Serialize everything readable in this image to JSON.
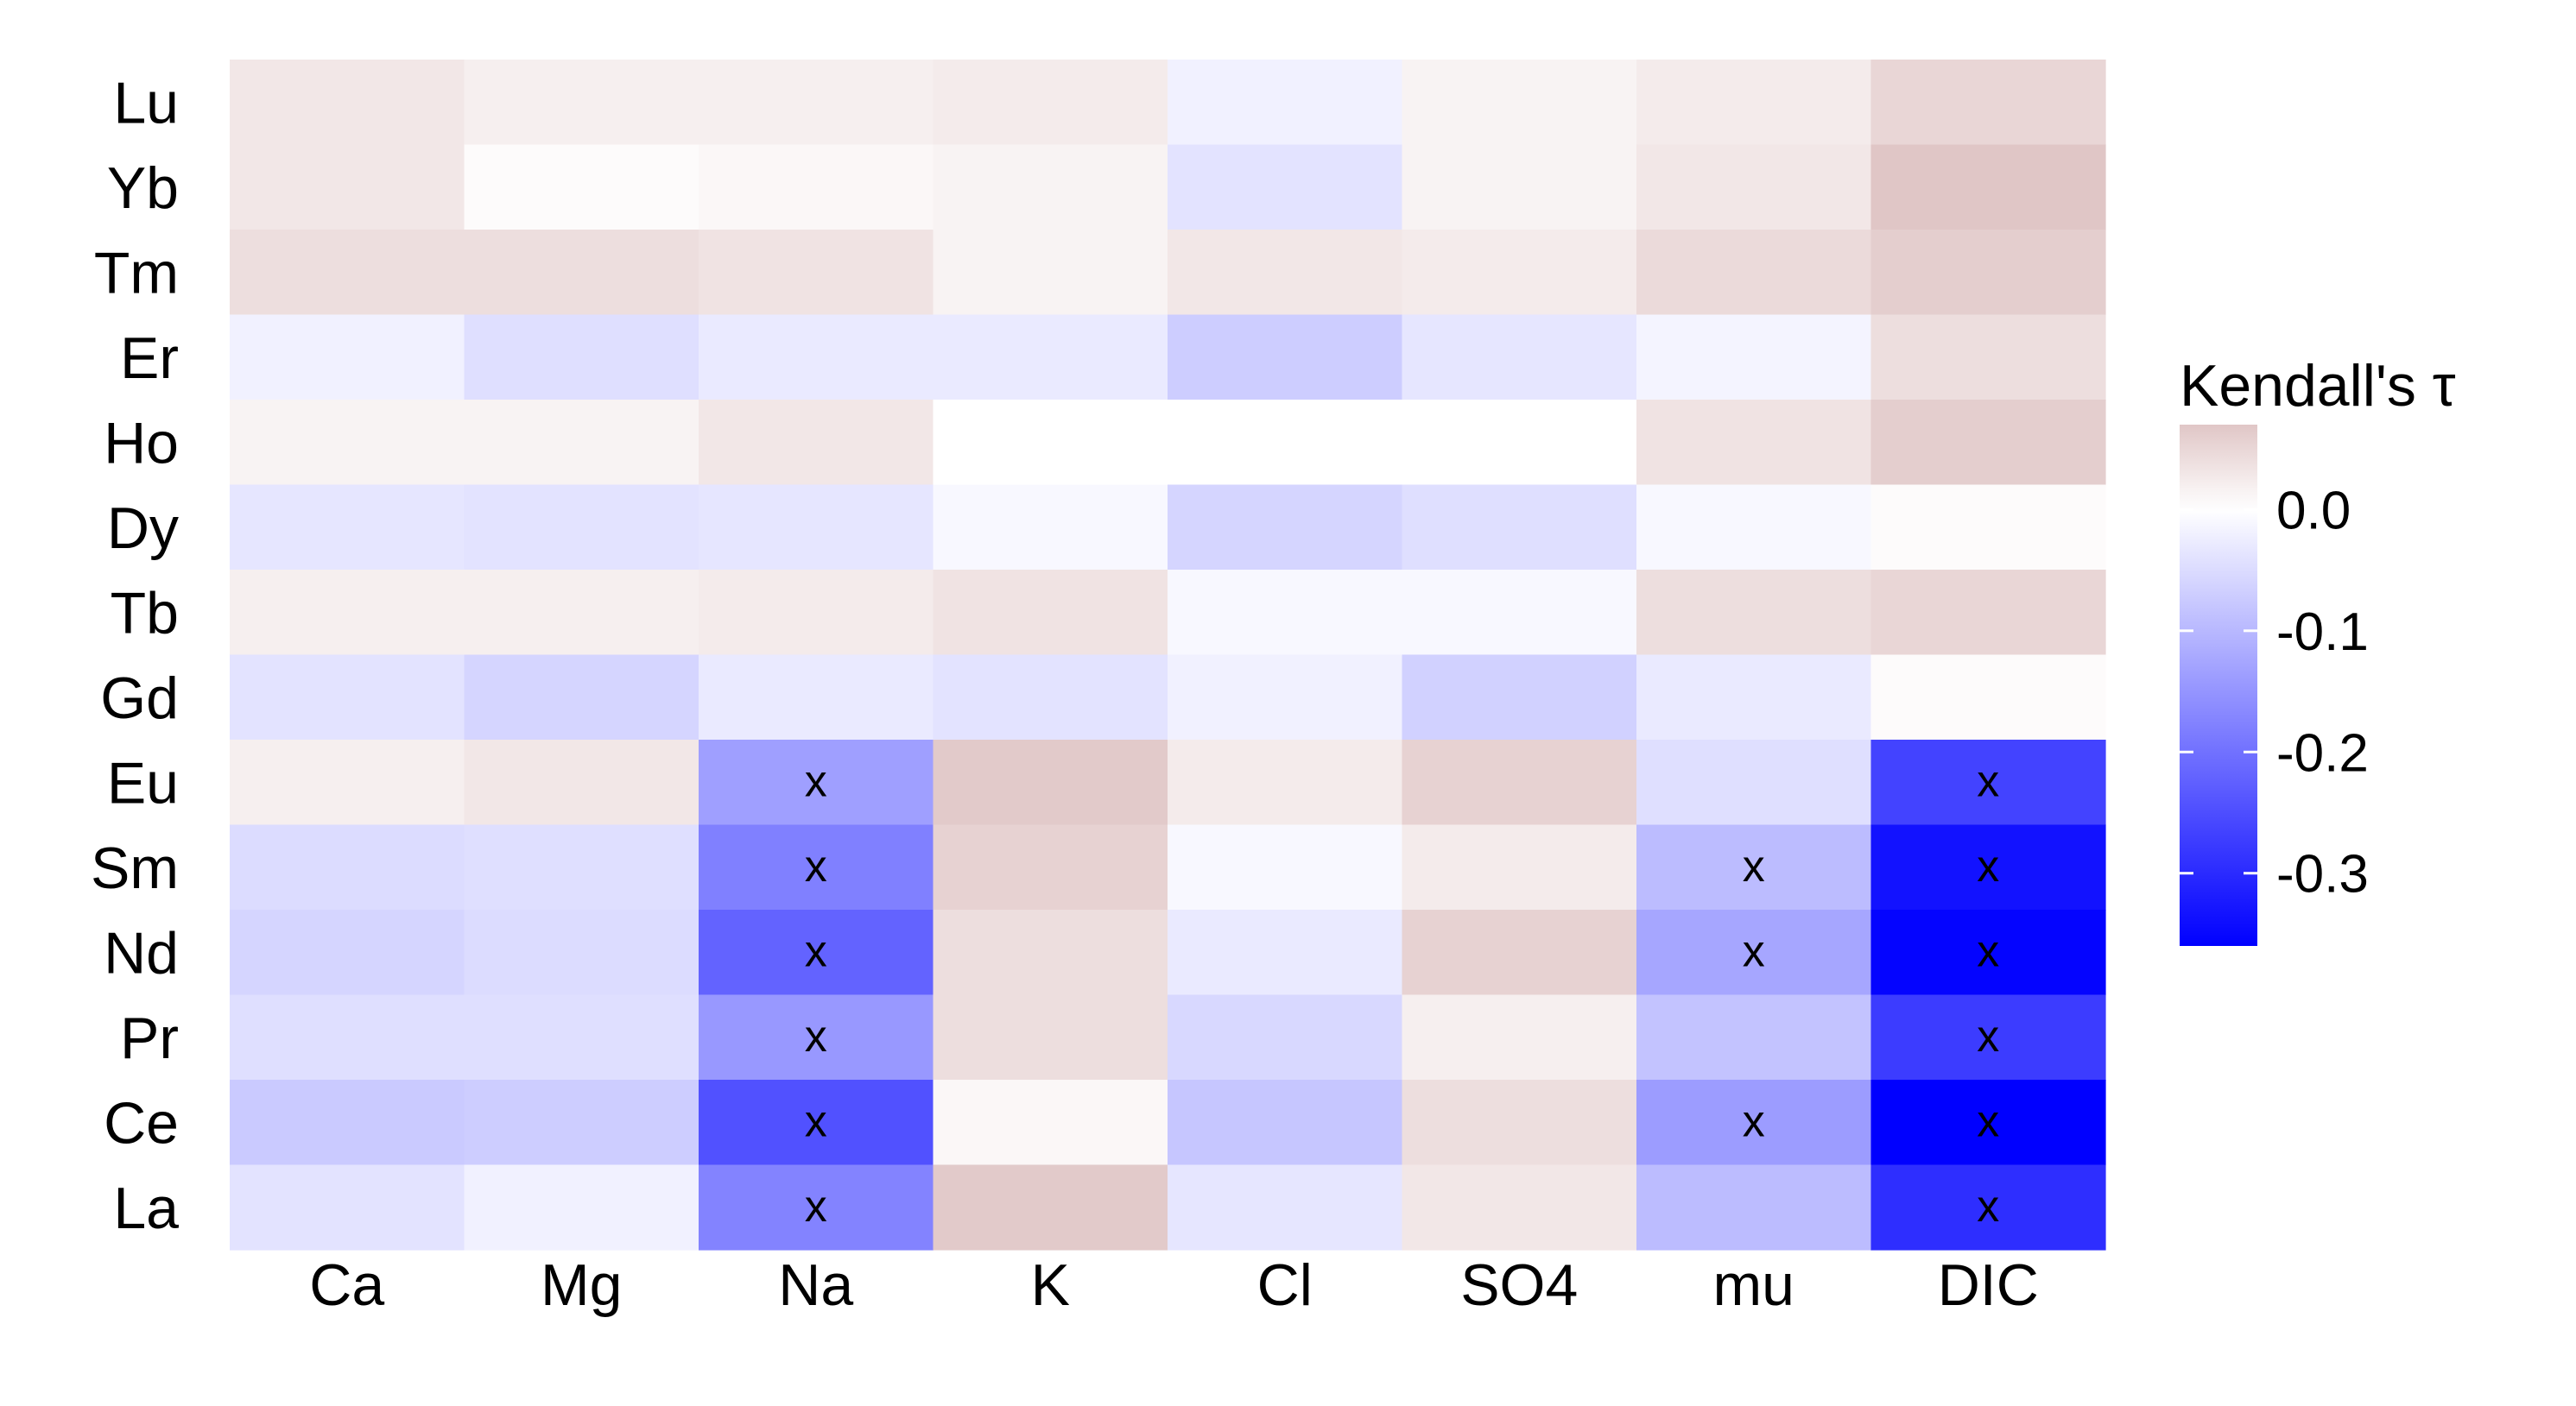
{
  "chart_data": {
    "type": "heatmap",
    "title": "",
    "xlabel": "",
    "ylabel": "",
    "x_categories": [
      "Ca",
      "Mg",
      "Na",
      "K",
      "Cl",
      "SO4",
      "mu",
      "DIC"
    ],
    "y_categories": [
      "Lu",
      "Yb",
      "Tm",
      "Er",
      "Ho",
      "Dy",
      "Tb",
      "Gd",
      "Eu",
      "Sm",
      "Nd",
      "Pr",
      "Ce",
      "La"
    ],
    "values": [
      [
        0.03,
        0.02,
        0.02,
        0.025,
        -0.02,
        0.015,
        0.025,
        0.05
      ],
      [
        0.03,
        0.005,
        0.01,
        0.015,
        -0.04,
        0.015,
        0.03,
        0.07
      ],
      [
        0.04,
        0.04,
        0.035,
        0.015,
        0.03,
        0.025,
        0.045,
        0.06
      ],
      [
        -0.02,
        -0.045,
        -0.03,
        -0.03,
        -0.07,
        -0.035,
        -0.015,
        0.04
      ],
      [
        0.015,
        0.015,
        0.03,
        0.0,
        0.0,
        0.0,
        0.035,
        0.06
      ],
      [
        -0.035,
        -0.04,
        -0.035,
        -0.01,
        -0.06,
        -0.045,
        -0.01,
        0.005
      ],
      [
        0.02,
        0.02,
        0.025,
        0.035,
        -0.01,
        -0.01,
        0.04,
        0.05
      ],
      [
        -0.04,
        -0.06,
        -0.03,
        -0.04,
        -0.02,
        -0.065,
        -0.03,
        0.005
      ],
      [
        0.02,
        0.03,
        -0.135,
        0.065,
        0.025,
        0.055,
        -0.045,
        -0.265
      ],
      [
        -0.05,
        -0.045,
        -0.18,
        0.055,
        -0.01,
        0.025,
        -0.095,
        -0.335
      ],
      [
        -0.06,
        -0.05,
        -0.22,
        0.04,
        -0.03,
        0.055,
        -0.125,
        -0.355
      ],
      [
        -0.045,
        -0.045,
        -0.145,
        0.04,
        -0.055,
        0.02,
        -0.085,
        -0.275
      ],
      [
        -0.075,
        -0.07,
        -0.245,
        0.01,
        -0.08,
        0.04,
        -0.14,
        -0.36
      ],
      [
        -0.04,
        -0.02,
        -0.175,
        0.065,
        -0.035,
        0.03,
        -0.095,
        -0.295
      ]
    ],
    "significant_mark": "x",
    "significant": [
      [
        false,
        false,
        false,
        false,
        false,
        false,
        false,
        false
      ],
      [
        false,
        false,
        false,
        false,
        false,
        false,
        false,
        false
      ],
      [
        false,
        false,
        false,
        false,
        false,
        false,
        false,
        false
      ],
      [
        false,
        false,
        false,
        false,
        false,
        false,
        false,
        false
      ],
      [
        false,
        false,
        false,
        false,
        false,
        false,
        false,
        false
      ],
      [
        false,
        false,
        false,
        false,
        false,
        false,
        false,
        false
      ],
      [
        false,
        false,
        false,
        false,
        false,
        false,
        false,
        false
      ],
      [
        false,
        false,
        false,
        false,
        false,
        false,
        false,
        false
      ],
      [
        false,
        false,
        true,
        false,
        false,
        false,
        false,
        true
      ],
      [
        false,
        false,
        true,
        false,
        false,
        false,
        true,
        true
      ],
      [
        false,
        false,
        true,
        false,
        false,
        false,
        true,
        true
      ],
      [
        false,
        false,
        true,
        false,
        false,
        false,
        false,
        true
      ],
      [
        false,
        false,
        true,
        false,
        false,
        false,
        true,
        true
      ],
      [
        false,
        false,
        true,
        false,
        false,
        false,
        false,
        true
      ]
    ],
    "legend": {
      "title": "Kendall's τ",
      "placement": "right",
      "range": [
        -0.36,
        0.07
      ],
      "ticks": [
        0.0,
        -0.1,
        -0.2,
        -0.3
      ],
      "tick_labels": [
        "0.0",
        "-0.1",
        "-0.2",
        "-0.3"
      ]
    },
    "colors": {
      "low": "#0000ff",
      "mid": "#ffffff",
      "high": "#e0c6c6"
    }
  }
}
